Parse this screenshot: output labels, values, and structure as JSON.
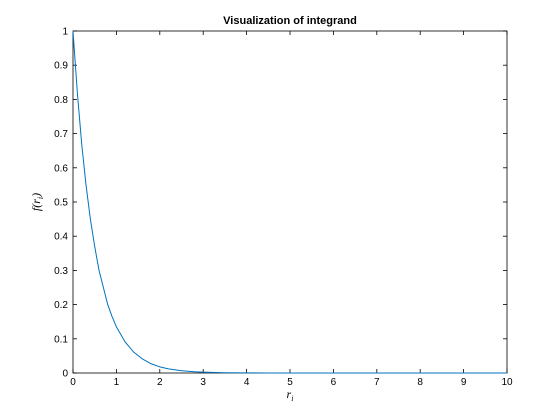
{
  "chart_data": {
    "type": "line",
    "title": "Visualization of integrand",
    "xlabel": "r",
    "xlabel_subscript": "i",
    "ylabel": "f",
    "ylabel_arg_open": "(r",
    "ylabel_arg_subscript": "i",
    "ylabel_arg_close": ")",
    "xlim": [
      0,
      10
    ],
    "ylim": [
      0,
      1
    ],
    "x_ticks": [
      "0",
      "1",
      "2",
      "3",
      "4",
      "5",
      "6",
      "7",
      "8",
      "9",
      "10"
    ],
    "y_ticks": [
      "0",
      "0.1",
      "0.2",
      "0.3",
      "0.4",
      "0.5",
      "0.6",
      "0.7",
      "0.8",
      "0.9",
      "1"
    ],
    "grid": false,
    "series": [
      {
        "color": "#0072bd",
        "x": [
          0,
          0.1,
          0.2,
          0.3,
          0.4,
          0.5,
          0.6,
          0.7,
          0.8,
          0.9,
          1.0,
          1.2,
          1.4,
          1.6,
          1.8,
          2.0,
          2.2,
          2.5,
          2.8,
          3.0,
          3.5,
          4.0,
          4.5,
          5.0,
          6.0,
          7.0,
          8.0,
          9.0,
          10.0
        ],
        "y": [
          1.0,
          0.82,
          0.67,
          0.55,
          0.45,
          0.37,
          0.3,
          0.25,
          0.2,
          0.165,
          0.135,
          0.091,
          0.061,
          0.041,
          0.027,
          0.018,
          0.012,
          0.0067,
          0.0037,
          0.0025,
          0.0009,
          0.0003,
          0.0001,
          5e-05,
          0,
          0,
          0,
          0,
          0
        ]
      }
    ]
  }
}
